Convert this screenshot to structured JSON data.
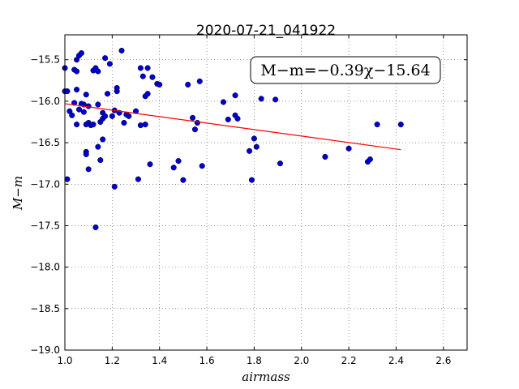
{
  "chart_data": {
    "type": "scatter",
    "title": "2020-07-21_041922",
    "xlabel": "airmass",
    "ylabel": "M−m",
    "xlim": [
      1.0,
      2.7
    ],
    "ylim": [
      -19.0,
      -15.2
    ],
    "y_inverted": true,
    "grid": true,
    "xticks": [
      "1.0",
      "1.2",
      "1.4",
      "1.6",
      "1.8",
      "2.0",
      "2.2",
      "2.4",
      "2.6"
    ],
    "yticks": [
      "−15.5",
      "−16.0",
      "−16.5",
      "−17.0",
      "−17.5",
      "−18.0",
      "−18.5",
      "−19.0"
    ],
    "annotation": "M−m=−0.39χ−15.64",
    "point_color": "#0000cc",
    "fit_color": "#ff0000",
    "fit": {
      "slope": -0.39,
      "intercept": -15.64,
      "x_range": [
        1.0,
        2.42
      ]
    },
    "series": [
      {
        "x": [
          1.0,
          1.01,
          1.01,
          1.02,
          1.03,
          1.04,
          1.04,
          1.05,
          1.05,
          1.05,
          1.06,
          1.06,
          1.07,
          1.07,
          1.08,
          1.08,
          1.09,
          1.09,
          1.09,
          1.1,
          1.1,
          1.1,
          1.11,
          1.12,
          1.12,
          1.13,
          1.14,
          1.14,
          1.14,
          1.15,
          1.15,
          1.16,
          1.16,
          1.16,
          1.17,
          1.17,
          1.18,
          1.19,
          1.2,
          1.21,
          1.22,
          1.22,
          1.23,
          1.24,
          1.25,
          1.26,
          1.27,
          1.3,
          1.31,
          1.32,
          1.32,
          1.33,
          1.34,
          1.34,
          1.35,
          1.35,
          1.36,
          1.37,
          1.39,
          1.4,
          1.46,
          1.48,
          1.5,
          1.52,
          1.54,
          1.55,
          1.56,
          1.57,
          1.58,
          1.67,
          1.69,
          1.72,
          1.72,
          1.73,
          1.78,
          1.79,
          1.8,
          1.81,
          1.83,
          1.89,
          1.91,
          2.1,
          2.2,
          2.28,
          2.29,
          2.32,
          2.42,
          1.13,
          1.21,
          1.09,
          1.0,
          1.05
        ],
        "y": [
          -15.6,
          -15.88,
          -16.94,
          -16.12,
          -16.17,
          -15.62,
          -16.02,
          -15.64,
          -15.86,
          -16.28,
          -15.45,
          -16.1,
          -15.42,
          -16.03,
          -16.04,
          -16.13,
          -15.92,
          -16.61,
          -16.64,
          -16.06,
          -16.26,
          -16.82,
          -16.29,
          -15.63,
          -16.28,
          -15.6,
          -15.64,
          -16.04,
          -16.55,
          -16.25,
          -16.71,
          -16.14,
          -16.21,
          -16.46,
          -15.48,
          -16.18,
          -15.91,
          -15.55,
          -16.18,
          -16.11,
          -15.88,
          -15.84,
          -16.14,
          -15.39,
          -16.26,
          -16.16,
          -16.18,
          -16.12,
          -16.94,
          -15.6,
          -16.29,
          -15.7,
          -15.94,
          -16.28,
          -15.91,
          -15.6,
          -16.76,
          -15.71,
          -15.79,
          -15.8,
          -16.8,
          -16.72,
          -16.95,
          -15.8,
          -16.2,
          -16.34,
          -16.26,
          -15.76,
          -16.78,
          -16.01,
          -16.22,
          -16.17,
          -15.93,
          -16.21,
          -16.6,
          -16.95,
          -16.45,
          -16.55,
          -15.97,
          -15.98,
          -16.75,
          -16.67,
          -16.57,
          -16.73,
          -16.7,
          -16.28,
          -16.28,
          -17.52,
          -17.03,
          -16.28,
          -15.88,
          -15.5
        ]
      }
    ]
  }
}
